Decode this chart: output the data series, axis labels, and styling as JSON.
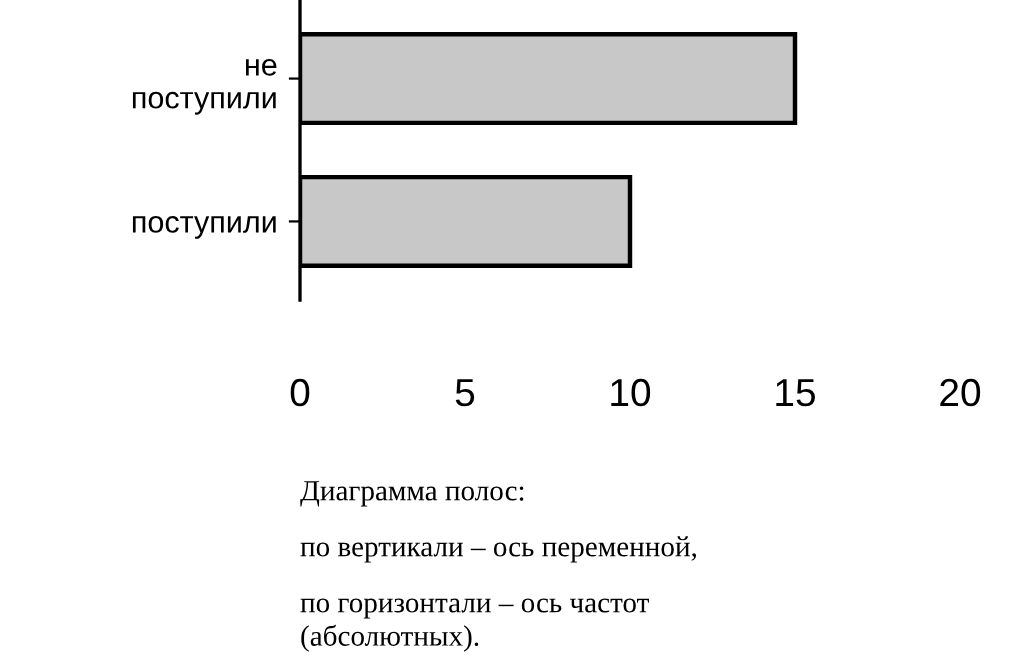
{
  "chart_data": {
    "type": "bar",
    "orientation": "horizontal",
    "categories": [
      "не поступили",
      "поступили"
    ],
    "values": [
      15,
      10
    ],
    "color": "#c8c8c8",
    "xlim": [
      0,
      20
    ],
    "xticks": [
      0,
      5,
      10,
      15,
      20
    ],
    "grid": false,
    "legend": false,
    "annotations": [
      "Диаграмма полос:",
      "по вертикали – ось переменной,",
      "по горизонтали – ось частот\n(абсолютных)."
    ]
  }
}
